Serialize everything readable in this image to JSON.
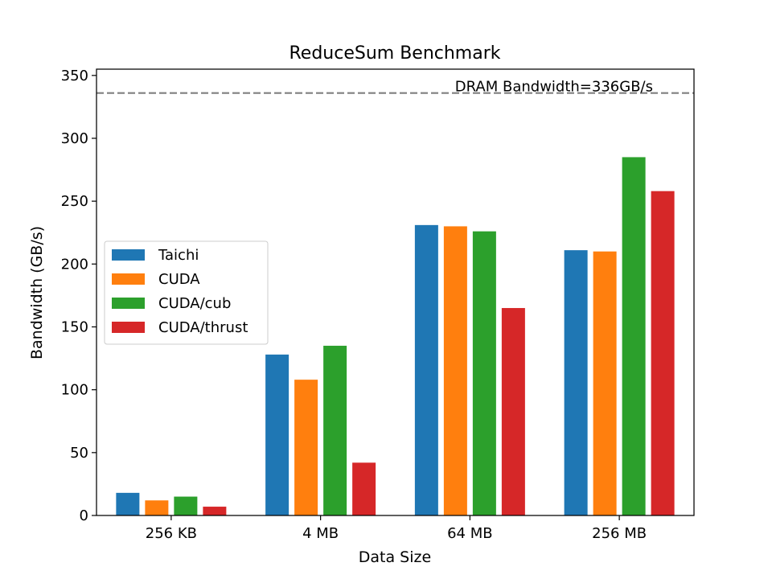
{
  "chart_data": {
    "type": "bar",
    "title": "ReduceSum Benchmark",
    "xlabel": "Data Size",
    "ylabel": "Bandwidth (GB/s)",
    "categories": [
      "256 KB",
      "4 MB",
      "64 MB",
      "256 MB"
    ],
    "ylim": [
      0,
      355
    ],
    "yticks": [
      0,
      50,
      100,
      150,
      200,
      250,
      300,
      350
    ],
    "grid": false,
    "legend_position": "center-left",
    "series": [
      {
        "name": "Taichi",
        "color": "#1f77b4",
        "values": [
          18,
          128,
          231,
          211
        ]
      },
      {
        "name": "CUDA",
        "color": "#ff7f0e",
        "values": [
          12,
          108,
          230,
          210
        ]
      },
      {
        "name": "CUDA/cub",
        "color": "#2ca02c",
        "values": [
          15,
          135,
          226,
          285
        ]
      },
      {
        "name": "CUDA/thrust",
        "color": "#d62728",
        "values": [
          7,
          42,
          165,
          258
        ]
      }
    ],
    "reference_line": {
      "value": 336,
      "label": "DRAM Bandwidth=336GB/s",
      "color": "#808080",
      "style": "dashed"
    }
  }
}
